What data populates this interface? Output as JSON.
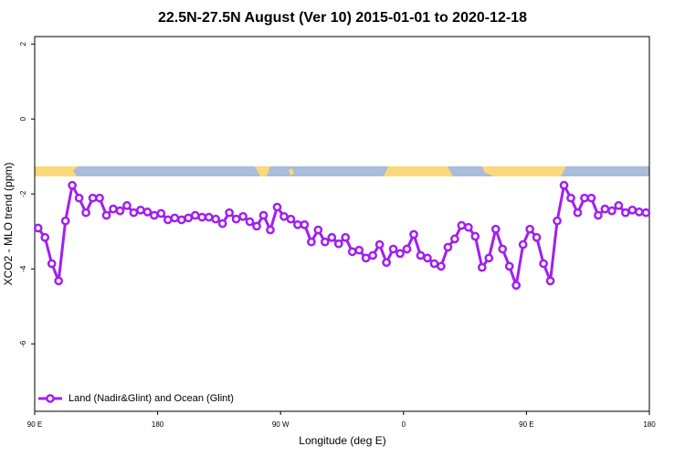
{
  "chart_data": {
    "type": "line",
    "title": "22.5N-27.5N August (Ver 10)   2015-01-01 to 2020-12-18",
    "x_label": "Longitude (deg E)",
    "y_label": "XCO2 - MLO trend (ppm)",
    "xlim": [
      90,
      540
    ],
    "ylim": [
      -7.8,
      2.2
    ],
    "xticks": [
      {
        "value": 90,
        "label": "90 E"
      },
      180,
      {
        "value": 270,
        "label": "90 W"
      },
      {
        "value": 360,
        "label": "0"
      },
      {
        "value": 450,
        "label": "90 E"
      },
      {
        "value": 540,
        "label": "180"
      }
    ],
    "yticks": [
      -6,
      -4,
      -2,
      0,
      2
    ],
    "legend": "bottomleft",
    "x": [
      92.5,
      97.5,
      102.5,
      107.5,
      112.5,
      117.5,
      122.5,
      127.5,
      132.5,
      137.5,
      142.5,
      147.5,
      152.5,
      157.5,
      162.5,
      167.5,
      172.5,
      177.5,
      182.5,
      187.5,
      192.5,
      197.5,
      202.5,
      207.5,
      212.5,
      217.5,
      222.5,
      227.5,
      232.5,
      237.5,
      242.5,
      247.5,
      252.5,
      257.5,
      262.5,
      267.5,
      272.5,
      277.5,
      282.5,
      287.5,
      292.5,
      297.5,
      302.5,
      307.5,
      312.5,
      317.5,
      322.5,
      327.5,
      332.5,
      337.5,
      342.5,
      347.5,
      352.5,
      357.5,
      362.5,
      367.5,
      372.5,
      377.5,
      382.5,
      387.5,
      392.5,
      397.5,
      402.5,
      407.5,
      412.5,
      417.5,
      422.5,
      427.5,
      432.5,
      437.5,
      442.5,
      447.5,
      452.5,
      457.5,
      462.5,
      467.5,
      472.5,
      477.5,
      482.5,
      487.5,
      492.5,
      497.5,
      502.5,
      507.5,
      512.5,
      517.5,
      522.5,
      527.5,
      532.5,
      537.5
    ],
    "series": [
      {
        "name": "Land (Nadir&Glint) and Ocean (Glint)",
        "color": "#a020f0",
        "values": [
          -2.91,
          -3.16,
          -3.86,
          -4.32,
          -2.72,
          -1.77,
          -2.11,
          -2.5,
          -2.11,
          -2.11,
          -2.57,
          -2.4,
          -2.45,
          -2.31,
          -2.5,
          -2.43,
          -2.48,
          -2.57,
          -2.52,
          -2.69,
          -2.64,
          -2.69,
          -2.64,
          -2.57,
          -2.62,
          -2.62,
          -2.67,
          -2.79,
          -2.5,
          -2.67,
          -2.6,
          -2.74,
          -2.86,
          -2.57,
          -2.96,
          -2.35,
          -2.6,
          -2.67,
          -2.82,
          -2.82,
          -3.28,
          -2.96,
          -3.28,
          -3.16,
          -3.33,
          -3.16,
          -3.54,
          -3.5,
          -3.71,
          -3.64,
          -3.35,
          -3.83,
          -3.47,
          -3.59,
          -3.47,
          -3.08,
          -3.64,
          -3.71,
          -3.86,
          -3.93,
          -3.42,
          -3.2,
          -2.84,
          -2.89,
          -3.13,
          -3.96,
          -3.71,
          -2.94,
          -3.47,
          -3.93,
          -4.44,
          -3.35,
          -2.94,
          -3.16,
          -3.86,
          -4.32,
          -2.72,
          -1.77,
          -2.11,
          -2.5,
          -2.11,
          -2.11,
          -2.57,
          -2.4,
          -2.45,
          -2.31,
          -2.5,
          -2.43,
          -2.48,
          -2.5
        ]
      }
    ]
  }
}
